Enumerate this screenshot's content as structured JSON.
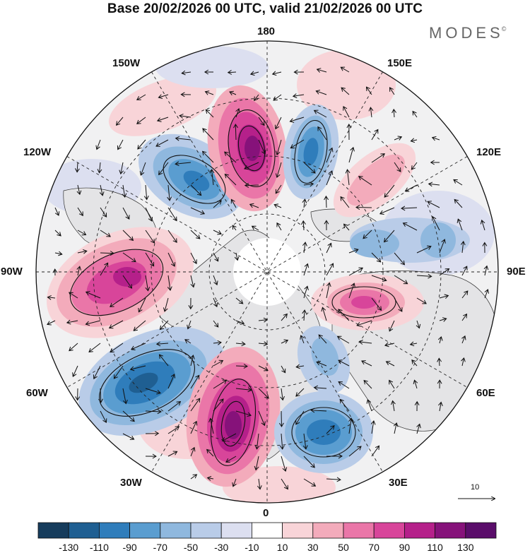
{
  "title": "Base 20/02/2026 00 UTC, valid 21/02/2026 00 UTC",
  "brand": {
    "name": "MODES",
    "mark": "©"
  },
  "longitude_labels": {
    "l180": "180",
    "l150w": "150W",
    "l150e": "150E",
    "l120w": "120W",
    "l120e": "120E",
    "l90w": "90W",
    "l90e": "90E",
    "l60w": "60W",
    "l60e": "60E",
    "l30w": "30W",
    "l30e": "30E",
    "l0": "0"
  },
  "vector_reference": {
    "value": "10"
  },
  "colorbar": {
    "ticks": [
      "-130",
      "-110",
      "-90",
      "-70",
      "-50",
      "-30",
      "-10",
      "10",
      "30",
      "50",
      "70",
      "90",
      "110",
      "130"
    ],
    "colors": [
      "#163c5c",
      "#1f5f92",
      "#2f7dbb",
      "#5a9dd0",
      "#8fb8de",
      "#b9cce8",
      "#dcdff0",
      "#ffffff",
      "#f8d4d8",
      "#f3abbb",
      "#ea76a8",
      "#d8459a",
      "#b5208a",
      "#86127a",
      "#5a0d6a"
    ]
  },
  "anomaly_centers": [
    {
      "sign": "negative",
      "lon": "150W",
      "strength": -90
    },
    {
      "sign": "positive",
      "lon": "175W",
      "strength": 120
    },
    {
      "sign": "negative",
      "lon": "160E",
      "strength": -80
    },
    {
      "sign": "positive",
      "lon": "135E",
      "strength": 50
    },
    {
      "sign": "negative",
      "lon": "95E",
      "strength": -40
    },
    {
      "sign": "positive",
      "lon": "75E",
      "strength": 80
    },
    {
      "sign": "positive",
      "lon": "90W",
      "strength": 110
    },
    {
      "sign": "negative",
      "lon": "50W",
      "strength": -110
    },
    {
      "sign": "positive",
      "lon": "15W",
      "strength": 120
    },
    {
      "sign": "negative",
      "lon": "20E",
      "strength": -100
    },
    {
      "sign": "negative",
      "lon": "25E",
      "strength": -40
    }
  ]
}
